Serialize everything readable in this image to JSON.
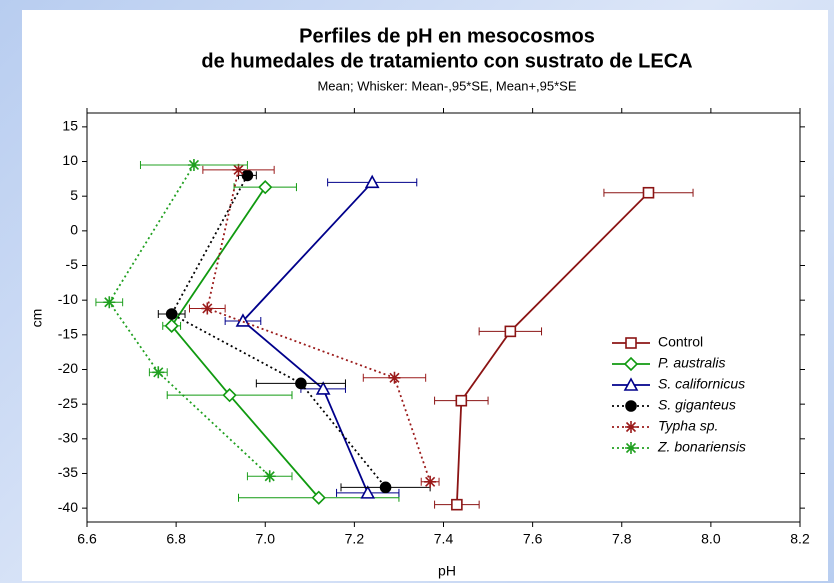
{
  "chart_data": {
    "type": "errorbar_line",
    "title": [
      "Perfiles de pH en mesocosmos",
      "de humedales de tratamiento con sustrato de LECA"
    ],
    "subtitle": "Mean;  Whisker: Mean-,95*SE, Mean+,95*SE",
    "x_label": "pH",
    "y_label": "cm",
    "xlim": [
      6.6,
      8.2
    ],
    "xticks": [
      6.6,
      6.8,
      {
        "value": 7,
        "label": "7.0"
      },
      7.2,
      7.4,
      7.6,
      7.8,
      {
        "value": 8,
        "label": "8.0"
      },
      8.2
    ],
    "ylim": [
      -42,
      17
    ],
    "yticks": [
      15,
      10,
      5,
      0,
      -5,
      -10,
      -15,
      -20,
      -25,
      -30,
      -35,
      -40
    ],
    "legend": "lower right",
    "series": [
      {
        "name": "Control",
        "color": "#8b1414",
        "marker": "square",
        "dash": "solid",
        "italic": false,
        "x": [
          7.86,
          7.55,
          7.44,
          7.43
        ],
        "y": [
          5.5,
          -14.5,
          -24.5,
          -39.5
        ],
        "errors": [
          0.1,
          0.07,
          0.06,
          0.05
        ]
      },
      {
        "name": "P. australis",
        "color": "#109a10",
        "marker": "diamond",
        "dash": "solid",
        "italic": true,
        "x": [
          7.0,
          6.79,
          6.92,
          7.12
        ],
        "y": [
          6.3,
          -13.7,
          -23.7,
          -38.5
        ],
        "errors": [
          0.07,
          0.02,
          0.14,
          0.18
        ]
      },
      {
        "name": "S. californicus",
        "color": "#00008b",
        "marker": "triangle",
        "dash": "solid",
        "italic": true,
        "x": [
          7.24,
          6.95,
          7.13,
          7.23
        ],
        "y": [
          7,
          -13,
          -22.8,
          -37.8
        ],
        "errors": [
          0.1,
          0.04,
          0.05,
          0.07
        ]
      },
      {
        "name": "S. giganteus",
        "color": "#000000",
        "marker": "circle",
        "dash": "dotted",
        "italic": true,
        "x": [
          6.96,
          6.79,
          7.08,
          7.27
        ],
        "y": [
          8,
          -12,
          -22,
          -37
        ],
        "errors": [
          0.02,
          0.03,
          0.1,
          0.1
        ]
      },
      {
        "name": "Typha sp.",
        "color": "#9b1b1b",
        "marker": "star",
        "dash": "dotted",
        "italic": true,
        "x": [
          6.94,
          6.87,
          7.29,
          7.37
        ],
        "y": [
          8.8,
          -11.2,
          -21.2,
          -36.2
        ],
        "errors": [
          0.08,
          0.04,
          0.07,
          0.02
        ]
      },
      {
        "name": "Z. bonariensis",
        "color": "#20a020",
        "marker": "star",
        "dash": "dotted",
        "italic": true,
        "x": [
          6.84,
          6.65,
          6.76,
          7.01
        ],
        "y": [
          9.5,
          -10.3,
          -20.4,
          -35.4
        ],
        "errors": [
          0.12,
          0.03,
          0.02,
          0.05
        ]
      }
    ]
  }
}
